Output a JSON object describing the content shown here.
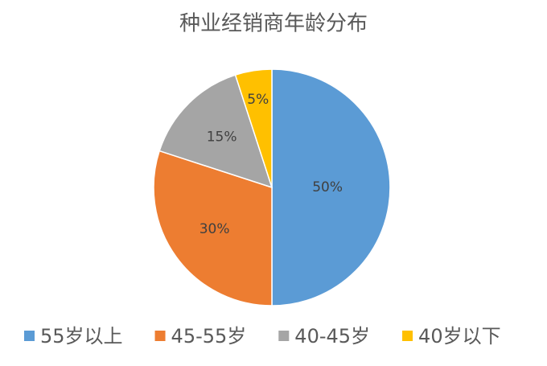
{
  "chart_data": {
    "type": "pie",
    "title": "种业经销商年龄分布",
    "categories": [
      "55岁以上",
      "45-55岁",
      "40-45岁",
      "40岁以下"
    ],
    "values": [
      50,
      30,
      15,
      5
    ],
    "value_labels": [
      "50%",
      "30%",
      "15%",
      "5%"
    ],
    "colors": [
      "#5b9bd5",
      "#ed7d31",
      "#a5a5a5",
      "#ffc000"
    ],
    "legend": "bottom"
  }
}
